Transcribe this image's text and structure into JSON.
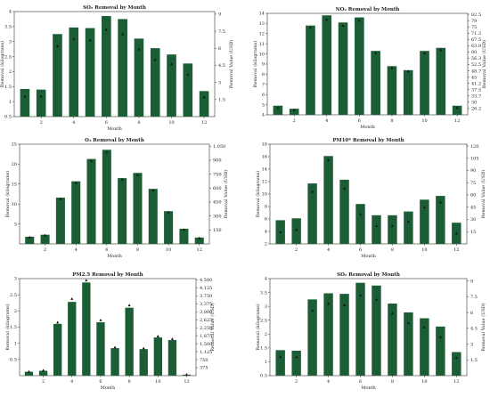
{
  "chart_data": [
    {
      "type": "bar",
      "title": "SO₂ Removal by Month",
      "xlabel": "Month",
      "ylabel": "Removal (kilograms)",
      "y2label": "Removal Value (USD)",
      "x": [
        1,
        2,
        3,
        4,
        5,
        6,
        7,
        8,
        9,
        10,
        11,
        12
      ],
      "values": [
        1.42,
        1.4,
        3.25,
        3.47,
        3.45,
        3.85,
        3.75,
        3.1,
        2.78,
        2.57,
        2.27,
        1.35
      ],
      "markers": [
        1.18,
        1.18,
        2.85,
        3.1,
        3.05,
        3.4,
        3.25,
        2.75,
        2.4,
        2.25,
        1.9,
        1.15
      ],
      "xticks": [
        2,
        4,
        6,
        8,
        10,
        12
      ],
      "ylim": [
        0.5,
        4
      ],
      "yticks": [
        0.5,
        1,
        1.5,
        2,
        2.5,
        3,
        3.5,
        4
      ],
      "yticklabels": [
        "0.5",
        "1",
        "1.5",
        "2",
        "2.5",
        "3",
        "3.5",
        "4"
      ],
      "y2ticklabels": [
        "1.5",
        "3",
        "4.5",
        "6",
        "7.5",
        "9"
      ],
      "bar_color": "#1b5e36"
    },
    {
      "type": "bar",
      "title": "NO₂ Removal by Month",
      "xlabel": "Month",
      "ylabel": "Removal (kilograms)",
      "y2label": "Removal Value (USD)",
      "x": [
        1,
        2,
        3,
        4,
        5,
        6,
        7,
        8,
        9,
        10,
        11,
        12
      ],
      "values": [
        4.9,
        4.6,
        12.8,
        13.8,
        13.1,
        13.6,
        10.3,
        8.8,
        8.4,
        10.3,
        10.6,
        4.9
      ],
      "markers": [
        4.7,
        4.5,
        12.6,
        13.4,
        12.8,
        13.3,
        10.1,
        8.6,
        8.3,
        10.1,
        10.4,
        4.7
      ],
      "xticks": [
        2,
        4,
        6,
        8,
        10,
        12
      ],
      "ylim": [
        4,
        14
      ],
      "yticks": [
        4,
        5,
        6,
        7,
        8,
        9,
        10,
        11,
        12,
        13,
        14
      ],
      "yticklabels": [
        "4",
        "5",
        "6",
        "7",
        "8",
        "9",
        "10",
        "11",
        "12",
        "13",
        "14"
      ],
      "y2ticklabels": [
        "26.2",
        "30",
        "33.7",
        "37.5",
        "41.2",
        "45",
        "48.7",
        "52.5",
        "56.3",
        "60",
        "63.8",
        "67.5",
        "71.3",
        "75",
        "79",
        "82.5"
      ],
      "bar_color": "#1b5e36"
    },
    {
      "type": "bar",
      "title": "O₃ Removal by Month",
      "xlabel": "Month",
      "ylabel": "Removal (kilograms)",
      "y2label": "Removal Value (USD)",
      "x": [
        1,
        2,
        3,
        4,
        5,
        6,
        7,
        8,
        9,
        10,
        11,
        12
      ],
      "values": [
        1.8,
        2.3,
        11.6,
        15.7,
        21.3,
        23.6,
        16.5,
        17.8,
        13.8,
        8.2,
        3.8,
        1.6
      ],
      "markers": [
        1.7,
        2.2,
        11.3,
        15.3,
        20.8,
        23.0,
        16.2,
        17.3,
        13.5,
        8.0,
        3.6,
        1.5
      ],
      "xticks": [
        2,
        4,
        6,
        8,
        10,
        12
      ],
      "ylim": [
        0,
        25
      ],
      "yticks": [
        5,
        10,
        15,
        20,
        25
      ],
      "yticklabels": [
        "5",
        "10",
        "15",
        "20",
        "25"
      ],
      "y2ticklabels": [
        "150",
        "300",
        "450",
        "600",
        "750",
        "900",
        "1,050"
      ],
      "bar_color": "#1b5e36"
    },
    {
      "type": "bar",
      "title": "PM10* Removal by Month",
      "xlabel": "Month",
      "ylabel": "Removal (kilograms)",
      "y2label": "Removal Value (USD)",
      "x": [
        1,
        2,
        3,
        4,
        5,
        6,
        7,
        8,
        9,
        10,
        11,
        12
      ],
      "values": [
        5.8,
        6.1,
        11.7,
        16.1,
        12.3,
        8.4,
        6.6,
        6.6,
        7.2,
        9.1,
        9.7,
        5.4
      ],
      "markers": [
        3.9,
        4.3,
        10.4,
        15.5,
        10.9,
        6.8,
        4.9,
        4.9,
        5.6,
        7.9,
        8.7,
        3.7
      ],
      "xticks": [
        2,
        4,
        6,
        8,
        10,
        12
      ],
      "ylim": [
        2,
        18
      ],
      "yticks": [
        2,
        4,
        6,
        8,
        10,
        12,
        14,
        16,
        18
      ],
      "yticklabels": [
        "2",
        "4",
        "6",
        "8",
        "10",
        "12",
        "14",
        "16",
        "18"
      ],
      "y2ticklabels": [
        "15",
        "30",
        "45",
        "60",
        "75",
        "90",
        "105",
        "120"
      ],
      "bar_color": "#1b5e36"
    },
    {
      "type": "bar",
      "title": "PM2.5 Removal by Month",
      "xlabel": "Month",
      "ylabel": "Removal (kilograms)",
      "y2label": "Removal Value (USD)",
      "x": [
        1,
        2,
        3,
        4,
        5,
        6,
        7,
        8,
        9,
        10,
        11,
        12
      ],
      "values": [
        0.12,
        0.15,
        1.6,
        2.28,
        2.88,
        1.65,
        0.85,
        2.1,
        0.82,
        1.18,
        1.1,
        0.03
      ],
      "markers": [
        0.13,
        0.17,
        1.65,
        2.38,
        2.95,
        1.72,
        0.88,
        2.18,
        0.85,
        1.22,
        1.14,
        0.04
      ],
      "xticks": [
        2,
        4,
        6,
        8,
        10,
        12
      ],
      "ylim": [
        0,
        3
      ],
      "yticks": [
        0.5,
        1,
        1.5,
        2,
        2.5,
        3
      ],
      "yticklabels": [
        "0.5",
        "1",
        "1.5",
        "2",
        "2.5",
        "3"
      ],
      "y2ticklabels": [
        "375",
        "750",
        "1,125",
        "1,500",
        "1,875",
        "2,250",
        "2,625",
        "3,000",
        "3,375",
        "3,750",
        "4,125",
        "4,500"
      ],
      "bar_color": "#1b5e36"
    },
    {
      "type": "bar",
      "title": "SO₂ Removal by Month",
      "xlabel": "Month",
      "ylabel": "Removal (kilograms)",
      "y2label": "Removal Value (USD)",
      "x": [
        1,
        2,
        3,
        4,
        5,
        6,
        7,
        8,
        9,
        10,
        11,
        12
      ],
      "values": [
        1.42,
        1.4,
        3.25,
        3.47,
        3.45,
        3.85,
        3.75,
        3.1,
        2.78,
        2.57,
        2.27,
        1.35
      ],
      "markers": [
        1.18,
        1.18,
        2.85,
        3.1,
        3.05,
        3.4,
        3.25,
        2.75,
        2.4,
        2.25,
        1.9,
        1.15
      ],
      "xticks": [
        2,
        4,
        6,
        8,
        10,
        12
      ],
      "ylim": [
        0.5,
        4
      ],
      "yticks": [
        0.5,
        1,
        1.5,
        2,
        2.5,
        3,
        3.5,
        4
      ],
      "yticklabels": [
        "0.5",
        "1",
        "1.5",
        "2",
        "2.5",
        "3",
        "3.5",
        "4"
      ],
      "y2ticklabels": [
        "1.5",
        "3",
        "4.5",
        "6",
        "7.5",
        "9"
      ],
      "bar_color": "#1b5e36"
    }
  ]
}
